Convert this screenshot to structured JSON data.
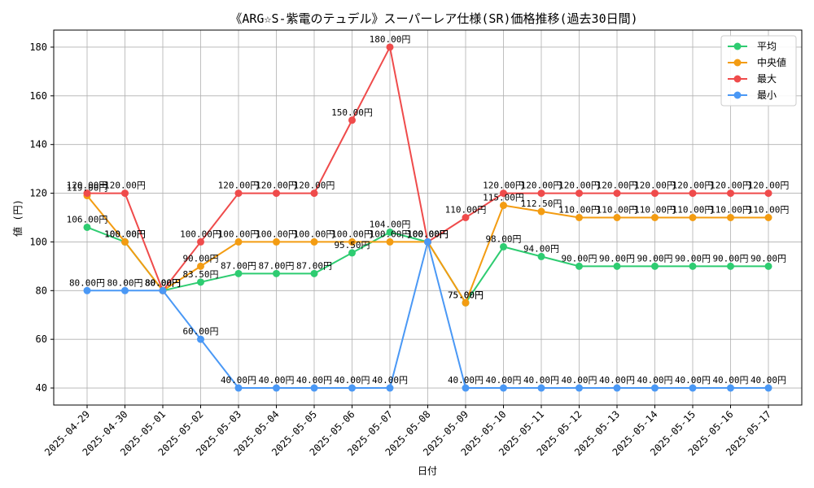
{
  "chart_data": {
    "type": "line",
    "title": "《ARG☆S-紫電のテュデル》スーパーレア仕様(SR)価格推移(過去30日間)",
    "xlabel": "日付",
    "ylabel": "値 (円)",
    "ylim": [
      33,
      187
    ],
    "yticks": [
      40,
      60,
      80,
      100,
      120,
      140,
      160,
      180
    ],
    "grid": true,
    "legend_position": "top-right",
    "value_suffix": "円",
    "categories": [
      "2025-04-29",
      "2025-04-30",
      "2025-05-01",
      "2025-05-02",
      "2025-05-03",
      "2025-05-04",
      "2025-05-05",
      "2025-05-06",
      "2025-05-07",
      "2025-05-08",
      "2025-05-09",
      "2025-05-10",
      "2025-05-11",
      "2025-05-12",
      "2025-05-13",
      "2025-05-14",
      "2025-05-15",
      "2025-05-16",
      "2025-05-17"
    ],
    "series": [
      {
        "name": "平均",
        "color": "#2ecc71",
        "values": [
          106,
          100,
          80,
          83.5,
          87,
          87,
          87,
          95.5,
          104,
          100,
          75,
          98,
          94,
          90,
          90,
          90,
          90,
          90,
          90
        ]
      },
      {
        "name": "中央値",
        "color": "#f39c12",
        "values": [
          119,
          100,
          80,
          90,
          100,
          100,
          100,
          100,
          100,
          100,
          75,
          115,
          112.5,
          110,
          110,
          110,
          110,
          110,
          110
        ]
      },
      {
        "name": "最大",
        "color": "#ef4b4b",
        "values": [
          120,
          120,
          80,
          100,
          120,
          120,
          120,
          150,
          180,
          100,
          110,
          120,
          120,
          120,
          120,
          120,
          120,
          120,
          120
        ]
      },
      {
        "name": "最小",
        "color": "#4a98f5",
        "values": [
          80,
          80,
          80,
          60,
          40,
          40,
          40,
          40,
          40,
          100,
          40,
          40,
          40,
          40,
          40,
          40,
          40,
          40,
          40
        ]
      }
    ]
  }
}
